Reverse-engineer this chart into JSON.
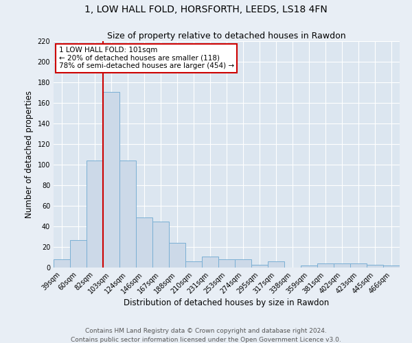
{
  "title": "1, LOW HALL FOLD, HORSFORTH, LEEDS, LS18 4FN",
  "subtitle": "Size of property relative to detached houses in Rawdon",
  "xlabel": "Distribution of detached houses by size in Rawdon",
  "ylabel": "Number of detached properties",
  "categories": [
    "39sqm",
    "60sqm",
    "82sqm",
    "103sqm",
    "124sqm",
    "146sqm",
    "167sqm",
    "188sqm",
    "210sqm",
    "231sqm",
    "253sqm",
    "274sqm",
    "295sqm",
    "317sqm",
    "338sqm",
    "359sqm",
    "381sqm",
    "402sqm",
    "423sqm",
    "445sqm",
    "466sqm"
  ],
  "values": [
    8,
    27,
    104,
    171,
    104,
    49,
    45,
    24,
    6,
    11,
    8,
    8,
    3,
    6,
    0,
    2,
    4,
    4,
    4,
    3,
    2
  ],
  "bar_color": "#ccd9e8",
  "bar_edge_color": "#7aafd4",
  "vline_color": "#cc0000",
  "vline_index": 2.5,
  "annotation_box_text_lines": [
    "1 LOW HALL FOLD: 101sqm",
    "← 20% of detached houses are smaller (118)",
    "78% of semi-detached houses are larger (454) →"
  ],
  "ylim": [
    0,
    220
  ],
  "yticks": [
    0,
    20,
    40,
    60,
    80,
    100,
    120,
    140,
    160,
    180,
    200,
    220
  ],
  "footnote1": "Contains HM Land Registry data © Crown copyright and database right 2024.",
  "footnote2": "Contains public sector information licensed under the Open Government Licence v3.0.",
  "bg_color": "#e8eef5",
  "plot_bg_color": "#dce6f0",
  "title_fontsize": 10,
  "subtitle_fontsize": 9,
  "axis_label_fontsize": 8.5,
  "tick_fontsize": 7,
  "annotation_fontsize": 7.5,
  "footnote_fontsize": 6.5
}
